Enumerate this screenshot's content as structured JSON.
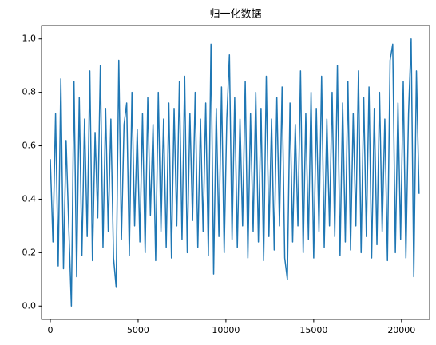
{
  "chart_data": {
    "type": "line",
    "title": "归一化数据",
    "x": [
      0,
      150,
      300,
      450,
      600,
      750,
      900,
      1050,
      1200,
      1350,
      1500,
      1650,
      1800,
      1950,
      2100,
      2250,
      2400,
      2550,
      2700,
      2850,
      3000,
      3150,
      3300,
      3450,
      3600,
      3750,
      3900,
      4050,
      4200,
      4350,
      4500,
      4650,
      4800,
      4950,
      5100,
      5250,
      5400,
      5550,
      5700,
      5850,
      6000,
      6150,
      6300,
      6450,
      6600,
      6750,
      6900,
      7050,
      7200,
      7350,
      7500,
      7650,
      7800,
      7950,
      8100,
      8250,
      8400,
      8550,
      8700,
      8850,
      9000,
      9150,
      9300,
      9450,
      9600,
      9750,
      9900,
      10050,
      10200,
      10350,
      10500,
      10650,
      10800,
      10950,
      11100,
      11250,
      11400,
      11550,
      11700,
      11850,
      12000,
      12150,
      12300,
      12450,
      12600,
      12750,
      12900,
      13050,
      13200,
      13350,
      13500,
      13650,
      13800,
      13950,
      14100,
      14250,
      14400,
      14550,
      14700,
      14850,
      15000,
      15150,
      15300,
      15450,
      15600,
      15750,
      15900,
      16050,
      16200,
      16350,
      16500,
      16650,
      16800,
      16950,
      17100,
      17250,
      17400,
      17550,
      17700,
      17850,
      18000,
      18150,
      18300,
      18450,
      18600,
      18750,
      18900,
      19050,
      19200,
      19350,
      19500,
      19650,
      19800,
      19950,
      20100,
      20250,
      20400,
      20550,
      20700,
      20850,
      21000
    ],
    "series": [
      {
        "color": "#1f77b4",
        "values": [
          0.55,
          0.24,
          0.72,
          0.15,
          0.85,
          0.14,
          0.62,
          0.3,
          0.0,
          0.84,
          0.11,
          0.78,
          0.19,
          0.7,
          0.26,
          0.88,
          0.17,
          0.65,
          0.33,
          0.9,
          0.22,
          0.74,
          0.28,
          0.7,
          0.18,
          0.07,
          0.92,
          0.25,
          0.68,
          0.76,
          0.19,
          0.8,
          0.3,
          0.66,
          0.24,
          0.72,
          0.2,
          0.78,
          0.34,
          0.68,
          0.17,
          0.8,
          0.28,
          0.7,
          0.22,
          0.76,
          0.18,
          0.74,
          0.3,
          0.84,
          0.25,
          0.86,
          0.2,
          0.72,
          0.32,
          0.8,
          0.22,
          0.7,
          0.28,
          0.76,
          0.19,
          0.98,
          0.12,
          0.74,
          0.26,
          0.82,
          0.2,
          0.7,
          0.94,
          0.25,
          0.78,
          0.22,
          0.7,
          0.3,
          0.84,
          0.18,
          0.72,
          0.28,
          0.8,
          0.24,
          0.74,
          0.17,
          0.86,
          0.26,
          0.7,
          0.21,
          0.78,
          0.3,
          0.82,
          0.18,
          0.1,
          0.76,
          0.24,
          0.68,
          0.3,
          0.88,
          0.2,
          0.72,
          0.25,
          0.8,
          0.18,
          0.74,
          0.28,
          0.86,
          0.22,
          0.7,
          0.3,
          0.8,
          0.26,
          0.9,
          0.19,
          0.76,
          0.24,
          0.84,
          0.21,
          0.72,
          0.3,
          0.88,
          0.2,
          0.78,
          0.26,
          0.82,
          0.18,
          0.74,
          0.23,
          0.8,
          0.28,
          0.7,
          0.17,
          0.92,
          0.98,
          0.2,
          0.76,
          0.25,
          0.84,
          0.18,
          0.72,
          1.0,
          0.11,
          0.88,
          0.42
        ]
      }
    ],
    "xlim": [
      -500,
      21600
    ],
    "ylim": [
      -0.05,
      1.05
    ],
    "xticks": [
      0,
      5000,
      10000,
      15000,
      20000
    ],
    "yticks": [
      {
        "value": 0,
        "label": "0.0"
      },
      {
        "value": 0.2,
        "label": "0.2"
      },
      {
        "value": 0.4,
        "label": "0.4"
      },
      {
        "value": 0.6,
        "label": "0.6"
      },
      {
        "value": 0.8,
        "label": "0.8"
      },
      {
        "value": 1,
        "label": "1.0"
      }
    ],
    "grid": false
  }
}
